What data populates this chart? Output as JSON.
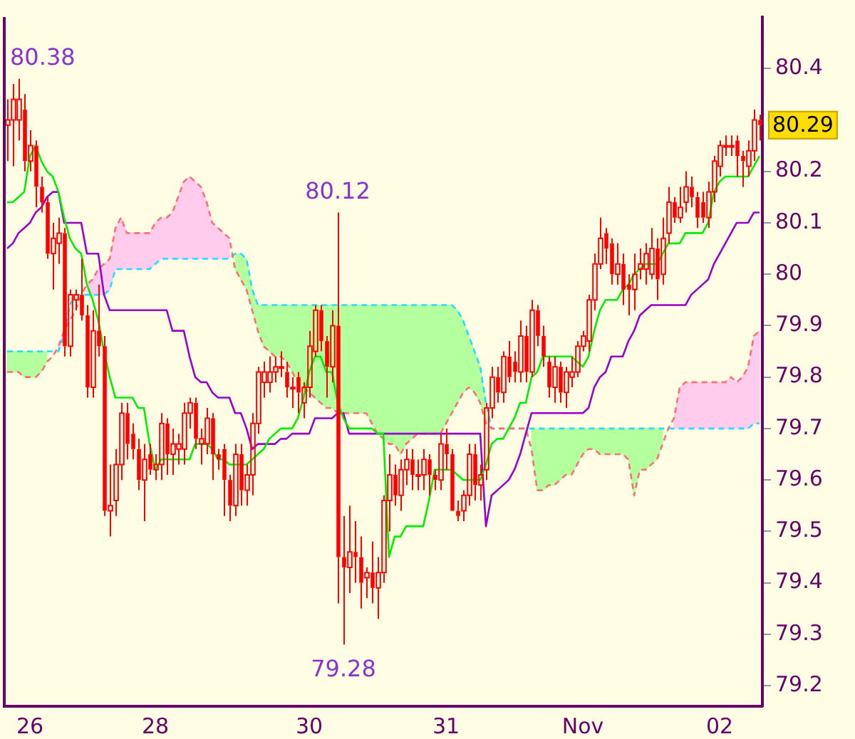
{
  "chart_data": {
    "type": "candlestick",
    "color": "#ff0000",
    "marker": "none",
    "categories": [
      null,
      null,
      null,
      null,
      "26",
      null,
      null,
      null,
      null,
      null,
      null,
      null,
      null,
      null,
      null,
      null,
      null,
      null,
      null,
      null,
      null,
      null,
      null,
      null,
      null,
      null,
      "28",
      null,
      null,
      null,
      null,
      null,
      null,
      null,
      null,
      null,
      null,
      null,
      null,
      null,
      null,
      null,
      null,
      null,
      null,
      null,
      null,
      null,
      null,
      null,
      null,
      null,
      null,
      "30",
      null,
      null,
      null,
      null,
      null,
      null,
      null,
      null,
      null,
      null,
      null,
      null,
      null,
      null,
      null,
      null,
      null,
      null,
      null,
      null,
      null,
      null,
      null,
      "31",
      null,
      null,
      null,
      null,
      null,
      null,
      null,
      null,
      null,
      null,
      null,
      null,
      null,
      null,
      null,
      null,
      null,
      null,
      null,
      null,
      null,
      null,
      null,
      "Nov",
      null,
      null,
      null,
      null,
      null,
      null,
      null,
      null,
      null,
      null,
      null,
      null,
      null,
      null,
      null,
      null,
      null,
      null,
      null,
      null,
      null,
      null,
      null,
      "02",
      null,
      null,
      null,
      null,
      null,
      null,
      null
    ],
    "ohlc": [
      [
        80.29,
        80.34,
        80.22,
        80.3
      ],
      [
        80.3,
        80.37,
        80.21,
        80.34
      ],
      [
        80.3,
        80.38,
        80.26,
        80.34
      ],
      [
        80.32,
        80.35,
        80.2,
        80.22
      ],
      [
        80.22,
        80.28,
        80.2,
        80.25
      ],
      [
        80.25,
        80.26,
        80.13,
        80.17
      ],
      [
        80.17,
        80.19,
        80.12,
        80.14
      ],
      [
        80.14,
        80.15,
        80.03,
        80.04
      ],
      [
        80.04,
        80.1,
        79.97,
        80.07
      ],
      [
        80.06,
        80.11,
        80.02,
        80.08
      ],
      [
        80.08,
        80.09,
        79.84,
        79.86
      ],
      [
        79.86,
        79.97,
        79.84,
        79.96
      ],
      [
        79.95,
        79.97,
        79.93,
        79.96
      ],
      [
        79.96,
        80.03,
        79.91,
        79.92
      ],
      [
        79.92,
        79.94,
        79.76,
        79.78
      ],
      [
        79.78,
        79.93,
        79.76,
        79.89
      ],
      [
        79.89,
        79.98,
        79.84,
        79.86
      ],
      [
        79.86,
        79.88,
        79.53,
        79.54
      ],
      [
        79.54,
        79.63,
        79.49,
        79.55
      ],
      [
        79.56,
        79.66,
        79.53,
        79.63
      ],
      [
        79.63,
        79.75,
        79.6,
        79.73
      ],
      [
        79.73,
        79.75,
        79.64,
        79.67
      ],
      [
        79.69,
        79.71,
        79.64,
        79.66
      ],
      [
        79.66,
        79.68,
        79.58,
        79.6
      ],
      [
        79.6,
        79.67,
        79.52,
        79.64
      ],
      [
        79.65,
        79.67,
        79.61,
        79.62
      ],
      [
        79.62,
        79.65,
        79.6,
        79.63
      ],
      [
        79.63,
        79.73,
        79.6,
        79.71
      ],
      [
        79.71,
        79.72,
        79.61,
        79.65
      ],
      [
        79.65,
        79.7,
        79.61,
        79.67
      ],
      [
        79.66,
        79.69,
        79.63,
        79.67
      ],
      [
        79.66,
        79.75,
        79.63,
        79.73
      ],
      [
        79.73,
        79.76,
        79.7,
        79.75
      ],
      [
        79.75,
        79.76,
        79.66,
        79.68
      ],
      [
        79.67,
        79.7,
        79.63,
        79.68
      ],
      [
        79.67,
        79.74,
        79.65,
        79.72
      ],
      [
        79.72,
        79.73,
        79.6,
        79.65
      ],
      [
        79.65,
        79.66,
        79.62,
        79.64
      ],
      [
        79.66,
        79.67,
        79.53,
        79.6
      ],
      [
        79.6,
        79.61,
        79.52,
        79.55
      ],
      [
        79.55,
        79.67,
        79.53,
        79.65
      ],
      [
        79.65,
        79.67,
        79.55,
        79.58
      ],
      [
        79.58,
        79.63,
        79.55,
        79.61
      ],
      [
        79.61,
        79.73,
        79.57,
        79.71
      ],
      [
        79.71,
        79.82,
        79.69,
        79.81
      ],
      [
        79.79,
        79.83,
        79.76,
        79.81
      ],
      [
        79.79,
        79.84,
        79.77,
        79.81
      ],
      [
        79.81,
        79.84,
        79.79,
        79.82
      ],
      [
        79.82,
        79.85,
        79.8,
        79.82
      ],
      [
        79.81,
        79.83,
        79.76,
        79.78
      ],
      [
        79.78,
        79.8,
        79.74,
        79.78
      ],
      [
        79.8,
        79.81,
        79.73,
        79.77
      ],
      [
        79.75,
        79.79,
        79.72,
        79.78
      ],
      [
        79.78,
        79.89,
        79.76,
        79.86
      ],
      [
        79.85,
        79.94,
        79.84,
        79.93
      ],
      [
        79.93,
        79.94,
        79.85,
        79.87
      ],
      [
        79.87,
        79.88,
        79.76,
        79.82
      ],
      [
        79.82,
        79.93,
        79.79,
        79.9
      ],
      [
        79.9,
        80.12,
        79.36,
        79.45
      ],
      [
        79.45,
        79.53,
        79.28,
        79.43
      ],
      [
        79.43,
        79.55,
        79.38,
        79.46
      ],
      [
        79.46,
        79.52,
        79.4,
        79.45
      ],
      [
        79.45,
        79.49,
        79.35,
        79.4
      ],
      [
        79.41,
        79.43,
        79.37,
        79.42
      ],
      [
        79.42,
        79.48,
        79.36,
        79.39
      ],
      [
        79.39,
        79.45,
        79.33,
        79.42
      ],
      [
        79.42,
        79.57,
        79.4,
        79.56
      ],
      [
        79.56,
        79.65,
        79.5,
        79.61
      ],
      [
        79.61,
        79.63,
        79.55,
        79.57
      ],
      [
        79.57,
        79.64,
        79.54,
        79.62
      ],
      [
        79.62,
        79.66,
        79.59,
        79.64
      ],
      [
        79.64,
        79.66,
        79.58,
        79.61
      ],
      [
        79.61,
        79.64,
        79.58,
        79.61
      ],
      [
        79.61,
        79.66,
        79.58,
        79.64
      ],
      [
        79.64,
        79.65,
        79.57,
        79.61
      ],
      [
        79.61,
        79.62,
        79.58,
        79.6
      ],
      [
        79.6,
        79.69,
        79.58,
        79.67
      ],
      [
        79.67,
        79.7,
        79.62,
        79.65
      ],
      [
        79.65,
        79.66,
        79.54,
        79.54
      ],
      [
        79.54,
        79.56,
        79.52,
        79.53
      ],
      [
        79.54,
        79.58,
        79.52,
        79.57
      ],
      [
        79.57,
        79.67,
        79.55,
        79.65
      ],
      [
        79.65,
        79.67,
        79.56,
        79.59
      ],
      [
        79.59,
        79.63,
        79.56,
        79.61
      ],
      [
        79.62,
        79.75,
        79.6,
        79.74
      ],
      [
        79.74,
        79.82,
        79.72,
        79.8
      ],
      [
        79.8,
        79.82,
        79.75,
        79.77
      ],
      [
        79.77,
        79.85,
        79.75,
        79.84
      ],
      [
        79.84,
        79.87,
        79.79,
        79.8
      ],
      [
        79.83,
        79.85,
        79.79,
        79.81
      ],
      [
        79.81,
        79.91,
        79.79,
        79.88
      ],
      [
        79.88,
        79.9,
        79.79,
        79.81
      ],
      [
        79.81,
        79.95,
        79.8,
        79.93
      ],
      [
        79.93,
        79.94,
        79.86,
        79.88
      ],
      [
        79.88,
        79.9,
        79.82,
        79.84
      ],
      [
        79.83,
        79.84,
        79.76,
        79.78
      ],
      [
        79.78,
        79.84,
        79.75,
        79.82
      ],
      [
        79.82,
        79.83,
        79.75,
        79.77
      ],
      [
        79.77,
        79.82,
        79.74,
        79.81
      ],
      [
        79.8,
        79.84,
        79.78,
        79.81
      ],
      [
        79.81,
        79.87,
        79.8,
        79.86
      ],
      [
        79.86,
        79.89,
        79.85,
        79.88
      ],
      [
        79.87,
        79.96,
        79.85,
        79.95
      ],
      [
        79.95,
        80.04,
        79.93,
        80.02
      ],
      [
        80.02,
        80.11,
        80.01,
        80.07
      ],
      [
        80.08,
        80.09,
        80.02,
        80.05
      ],
      [
        80.06,
        80.07,
        79.98,
        80.0
      ],
      [
        80.0,
        80.06,
        79.98,
        80.02
      ],
      [
        80.02,
        80.04,
        79.94,
        79.97
      ],
      [
        79.98,
        80.0,
        79.92,
        79.97
      ],
      [
        79.97,
        80.04,
        79.93,
        80.0
      ],
      [
        80.01,
        80.05,
        79.99,
        80.02
      ],
      [
        80.01,
        80.06,
        79.98,
        80.04
      ],
      [
        80.0,
        80.09,
        79.99,
        80.05
      ],
      [
        80.05,
        80.07,
        79.95,
        79.99
      ],
      [
        80.0,
        80.11,
        79.98,
        80.07
      ],
      [
        80.08,
        80.17,
        80.06,
        80.14
      ],
      [
        80.14,
        80.15,
        80.1,
        80.11
      ],
      [
        80.11,
        80.17,
        80.1,
        80.13
      ],
      [
        80.14,
        80.2,
        80.12,
        80.17
      ],
      [
        80.17,
        80.19,
        80.13,
        80.15
      ],
      [
        80.15,
        80.16,
        80.09,
        80.11
      ],
      [
        80.14,
        80.16,
        80.1,
        80.11
      ],
      [
        80.11,
        80.18,
        80.09,
        80.16
      ],
      [
        80.16,
        80.23,
        80.14,
        80.22
      ],
      [
        80.21,
        80.26,
        80.19,
        80.25
      ],
      [
        80.25,
        80.27,
        80.23,
        80.25
      ],
      [
        80.25,
        80.27,
        80.23,
        80.25
      ],
      [
        80.26,
        80.27,
        80.19,
        80.23
      ],
      [
        80.23,
        80.24,
        80.17,
        80.22
      ],
      [
        80.21,
        80.26,
        80.19,
        80.24
      ],
      [
        80.24,
        80.32,
        80.22,
        80.3
      ],
      [
        80.3,
        80.31,
        80.26,
        80.29
      ]
    ],
    "series": [
      {
        "type": "line",
        "color": "#00ee00",
        "values": [
          80.14,
          80.14,
          80.15,
          80.16,
          80.23,
          80.25,
          80.22,
          80.2,
          80.19,
          80.16,
          80.11,
          80.07,
          80.05,
          80.04,
          79.98,
          79.95,
          79.91,
          79.85,
          79.8,
          79.76,
          79.76,
          79.76,
          79.76,
          79.74,
          79.74,
          79.67,
          79.62,
          79.64,
          79.64,
          79.64,
          79.64,
          79.64,
          79.64,
          79.67,
          79.67,
          79.67,
          79.66,
          79.64,
          79.64,
          79.63,
          79.63,
          79.63,
          79.63,
          79.64,
          79.65,
          79.66,
          79.68,
          79.69,
          79.7,
          79.7,
          79.7,
          79.72,
          79.76,
          79.81,
          79.84,
          79.84,
          79.81,
          79.81,
          79.75,
          79.72,
          79.7,
          79.7,
          79.7,
          79.7,
          79.7,
          79.69,
          79.69,
          79.45,
          79.49,
          79.49,
          79.51,
          79.51,
          79.51,
          79.51,
          79.56,
          79.62,
          79.62,
          79.62,
          79.62,
          79.61,
          79.6,
          79.6,
          79.6,
          79.6,
          79.63,
          79.67,
          79.68,
          79.68,
          79.7,
          79.72,
          79.75,
          79.75,
          79.8,
          79.81,
          79.84,
          79.84,
          79.84,
          79.84,
          79.84,
          79.84,
          79.83,
          79.82,
          79.84,
          79.89,
          79.93,
          79.95,
          79.95,
          79.95,
          79.97,
          79.98,
          80.0,
          80.01,
          80.02,
          80.02,
          80.02,
          80.04,
          80.06,
          80.06,
          80.06,
          80.08,
          80.08,
          80.08,
          80.08,
          80.1,
          80.16,
          80.18,
          80.19,
          80.19,
          80.19,
          80.19,
          80.19,
          80.21,
          80.23
        ]
      },
      {
        "type": "line",
        "color": "#9900cc",
        "values": [
          80.05,
          80.06,
          80.08,
          80.09,
          80.1,
          80.12,
          80.13,
          80.15,
          80.16,
          80.16,
          80.1,
          80.1,
          80.1,
          80.1,
          80.04,
          80.04,
          80.04,
          79.96,
          79.93,
          79.93,
          79.93,
          79.93,
          79.93,
          79.93,
          79.93,
          79.93,
          79.93,
          79.93,
          79.93,
          79.89,
          79.89,
          79.89,
          79.84,
          79.8,
          79.79,
          79.79,
          79.77,
          79.76,
          79.76,
          79.76,
          79.73,
          79.73,
          79.7,
          79.66,
          79.67,
          79.67,
          79.67,
          79.67,
          79.68,
          79.68,
          79.69,
          79.69,
          79.69,
          79.69,
          79.72,
          79.72,
          79.72,
          79.72,
          79.73,
          79.73,
          79.69,
          79.69,
          79.69,
          79.69,
          79.69,
          79.69,
          79.69,
          79.69,
          79.69,
          79.69,
          79.69,
          79.69,
          79.69,
          79.69,
          79.69,
          79.69,
          79.69,
          79.69,
          79.69,
          79.69,
          79.69,
          79.69,
          79.69,
          79.69,
          79.51,
          79.57,
          79.58,
          79.59,
          79.6,
          79.62,
          79.65,
          79.69,
          79.73,
          79.73,
          79.73,
          79.73,
          79.73,
          79.73,
          79.73,
          79.73,
          79.73,
          79.73,
          79.74,
          79.78,
          79.8,
          79.81,
          79.84,
          79.84,
          79.84,
          79.87,
          79.89,
          79.92,
          79.93,
          79.94,
          79.94,
          79.94,
          79.94,
          79.94,
          79.94,
          79.94,
          79.96,
          79.97,
          79.98,
          79.99,
          80.02,
          80.04,
          80.06,
          80.08,
          80.1,
          80.1,
          80.1,
          80.12,
          80.12
        ]
      },
      {
        "type": "line",
        "color": "#ff6f6f",
        "line_style": "dashed",
        "lower": [
          null,
          null,
          null,
          null,
          null,
          null,
          null,
          null,
          null,
          79.85,
          79.88,
          null,
          null,
          null,
          79.96,
          79.96,
          79.96,
          79.96,
          79.97,
          80.01,
          80.01,
          80.01,
          80.01,
          80.01,
          80.01,
          80.01,
          80.02,
          80.03,
          80.03,
          80.03,
          80.03,
          80.03,
          80.03,
          80.03,
          80.03,
          80.03,
          80.03,
          80.03,
          80.03,
          80.03,
          null,
          null,
          null,
          null,
          null,
          null,
          null,
          null,
          null,
          null,
          null,
          null,
          null,
          null,
          null,
          null,
          null,
          null,
          null,
          null,
          null,
          null,
          null,
          null,
          null,
          null,
          null,
          null,
          null,
          null,
          null,
          null,
          null,
          null,
          null,
          null,
          null,
          null,
          null,
          null,
          null,
          null,
          null,
          null,
          null,
          null,
          null,
          null,
          null,
          null,
          null,
          null,
          null,
          null,
          null,
          null,
          null,
          null,
          null,
          null,
          null,
          null,
          null,
          null,
          null,
          null,
          null,
          null,
          null,
          null,
          null,
          null,
          null,
          null,
          null,
          null,
          null,
          79.7,
          79.7,
          79.7,
          79.7,
          79.7,
          79.7,
          79.7,
          79.7,
          79.7,
          79.7,
          79.7,
          79.7,
          79.7,
          79.7,
          79.71,
          79.71
        ],
        "upper": [
          null,
          null,
          null,
          null,
          null,
          null,
          null,
          null,
          null,
          79.86,
          79.89,
          null,
          null,
          null,
          79.98,
          79.99,
          80.01,
          80.02,
          80.03,
          80.09,
          80.11,
          80.08,
          80.08,
          80.08,
          80.08,
          80.08,
          80.1,
          80.11,
          80.11,
          80.12,
          80.15,
          80.18,
          80.19,
          80.18,
          80.17,
          80.14,
          80.1,
          80.09,
          80.08,
          80.07,
          null,
          null,
          null,
          null,
          null,
          null,
          null,
          null,
          null,
          null,
          null,
          null,
          null,
          null,
          null,
          null,
          null,
          null,
          null,
          null,
          null,
          null,
          null,
          null,
          null,
          null,
          null,
          null,
          null,
          null,
          null,
          null,
          null,
          null,
          null,
          null,
          null,
          null,
          null,
          null,
          null,
          null,
          null,
          null,
          null,
          null,
          null,
          null,
          null,
          null,
          null,
          null,
          null,
          null,
          null,
          null,
          null,
          null,
          null,
          null,
          null,
          null,
          null,
          null,
          null,
          null,
          null,
          null,
          null,
          null,
          null,
          null,
          null,
          null,
          null,
          null,
          null,
          79.72,
          79.78,
          79.79,
          79.79,
          79.79,
          79.79,
          79.79,
          79.79,
          79.79,
          79.79,
          79.8,
          79.79,
          79.8,
          79.82,
          79.88,
          79.89
        ],
        "values": [
          79.81,
          79.81,
          79.81,
          79.8,
          79.8,
          79.8,
          79.81,
          79.83,
          79.84,
          79.86,
          79.89,
          79.91,
          79.93,
          79.96,
          79.98,
          79.99,
          80.01,
          80.02,
          80.03,
          80.09,
          80.11,
          80.08,
          80.08,
          80.08,
          80.08,
          80.08,
          80.1,
          80.11,
          80.11,
          80.12,
          80.15,
          80.18,
          80.19,
          80.18,
          80.17,
          80.14,
          80.1,
          80.09,
          80.08,
          80.07,
          80.01,
          79.99,
          79.97,
          79.93,
          79.89,
          79.86,
          79.85,
          79.84,
          79.84,
          79.83,
          79.81,
          79.79,
          79.78,
          79.77,
          79.76,
          79.75,
          79.74,
          79.74,
          79.73,
          79.73,
          79.73,
          79.73,
          79.73,
          79.73,
          79.71,
          79.69,
          79.68,
          79.67,
          79.67,
          79.65,
          79.67,
          79.68,
          79.69,
          79.69,
          79.69,
          79.69,
          79.69,
          79.71,
          79.73,
          79.75,
          79.77,
          79.78,
          79.77,
          79.75,
          79.71,
          79.7,
          79.7,
          79.7,
          79.7,
          79.7,
          79.7,
          79.7,
          79.66,
          79.58,
          79.58,
          79.59,
          79.59,
          79.6,
          79.61,
          79.61,
          79.63,
          79.65,
          79.66,
          79.66,
          79.65,
          79.65,
          79.65,
          79.65,
          79.65,
          79.64,
          79.57,
          79.62,
          79.62,
          79.63,
          79.64,
          79.67,
          79.7,
          79.72,
          79.78,
          79.79,
          79.79,
          79.79,
          79.79,
          79.79,
          79.79,
          79.79,
          79.79,
          79.8,
          79.79,
          79.8,
          79.82,
          79.88,
          79.89
        ]
      },
      {
        "type": "line",
        "color": "#22ddff",
        "line_style": "dashed",
        "lower": [
          79.81,
          79.81,
          79.81,
          79.8,
          79.8,
          79.8,
          79.81,
          79.83,
          null,
          null,
          null,
          null,
          null,
          null,
          null,
          null,
          null,
          null,
          null,
          null,
          null,
          null,
          null,
          null,
          null,
          null,
          null,
          null,
          null,
          null,
          null,
          null,
          null,
          null,
          null,
          null,
          null,
          null,
          null,
          null,
          80.01,
          79.99,
          79.97,
          79.93,
          79.89,
          79.86,
          79.85,
          79.84,
          79.84,
          79.83,
          79.81,
          79.79,
          79.78,
          79.77,
          79.76,
          79.75,
          79.74,
          79.74,
          79.73,
          79.73,
          79.73,
          79.73,
          79.73,
          79.73,
          79.71,
          79.69,
          79.68,
          79.67,
          79.67,
          79.65,
          79.67,
          79.68,
          79.69,
          79.69,
          79.69,
          79.69,
          79.69,
          79.71,
          79.73,
          79.75,
          79.77,
          79.78,
          79.77,
          79.75,
          79.71,
          null,
          null,
          null,
          null,
          null,
          null,
          null,
          79.66,
          79.58,
          79.58,
          79.59,
          79.59,
          79.6,
          79.61,
          79.61,
          79.63,
          79.65,
          79.66,
          79.66,
          79.65,
          79.65,
          79.65,
          79.65,
          79.65,
          79.64,
          79.57,
          79.62,
          79.62,
          79.63,
          79.64,
          79.67,
          null,
          null,
          null,
          null,
          null,
          null,
          null,
          null,
          null,
          null,
          null,
          null,
          null,
          null,
          null,
          null,
          null
        ],
        "upper": [
          79.85,
          79.85,
          79.85,
          79.85,
          79.85,
          79.85,
          79.85,
          79.85,
          null,
          null,
          null,
          null,
          null,
          null,
          null,
          null,
          null,
          null,
          null,
          null,
          null,
          null,
          null,
          null,
          null,
          null,
          null,
          null,
          null,
          null,
          null,
          null,
          null,
          null,
          null,
          null,
          null,
          null,
          null,
          null,
          80.04,
          80.04,
          80.03,
          79.97,
          79.94,
          79.94,
          79.94,
          79.94,
          79.94,
          79.94,
          79.94,
          79.94,
          79.94,
          79.94,
          79.94,
          79.94,
          79.94,
          79.94,
          79.94,
          79.94,
          79.94,
          79.94,
          79.94,
          79.94,
          79.94,
          79.94,
          79.94,
          79.94,
          79.94,
          79.94,
          79.94,
          79.94,
          79.94,
          79.94,
          79.94,
          79.94,
          79.94,
          79.94,
          79.94,
          79.93,
          79.91,
          79.88,
          79.85,
          79.82,
          79.75,
          null,
          null,
          null,
          null,
          null,
          null,
          null,
          79.7,
          79.7,
          79.7,
          79.7,
          79.7,
          79.7,
          79.7,
          79.7,
          79.7,
          79.7,
          79.7,
          79.7,
          79.7,
          79.7,
          79.7,
          79.7,
          79.7,
          79.7,
          79.7,
          79.7,
          79.7,
          79.7,
          79.7,
          79.7,
          null,
          null,
          null,
          null,
          null,
          null,
          null,
          null,
          null,
          null,
          null,
          null,
          null,
          null,
          null,
          null,
          null
        ],
        "values": [
          79.85,
          79.85,
          79.85,
          79.85,
          79.85,
          79.85,
          79.85,
          79.85,
          79.85,
          79.85,
          79.88,
          79.94,
          79.96,
          79.96,
          79.96,
          79.96,
          79.96,
          79.96,
          79.97,
          80.01,
          80.01,
          80.01,
          80.01,
          80.01,
          80.01,
          80.01,
          80.02,
          80.03,
          80.03,
          80.03,
          80.03,
          80.03,
          80.03,
          80.03,
          80.03,
          80.03,
          80.03,
          80.03,
          80.03,
          80.03,
          80.04,
          80.04,
          80.03,
          79.97,
          79.94,
          79.94,
          79.94,
          79.94,
          79.94,
          79.94,
          79.94,
          79.94,
          79.94,
          79.94,
          79.94,
          79.94,
          79.94,
          79.94,
          79.94,
          79.94,
          79.94,
          79.94,
          79.94,
          79.94,
          79.94,
          79.94,
          79.94,
          79.94,
          79.94,
          79.94,
          79.94,
          79.94,
          79.94,
          79.94,
          79.94,
          79.94,
          79.94,
          79.94,
          79.94,
          79.93,
          79.91,
          79.88,
          79.85,
          79.82,
          79.75,
          79.7,
          79.7,
          79.7,
          79.7,
          79.7,
          79.7,
          79.7,
          79.7,
          79.7,
          79.7,
          79.7,
          79.7,
          79.7,
          79.7,
          79.7,
          79.7,
          79.7,
          79.7,
          79.7,
          79.7,
          79.7,
          79.7,
          79.7,
          79.7,
          79.7,
          79.7,
          79.7,
          79.7,
          79.7,
          79.7,
          79.7,
          79.7,
          79.7,
          79.7,
          79.7,
          79.7,
          79.7,
          79.7,
          79.7,
          79.7,
          79.7,
          79.7,
          79.7,
          79.7,
          79.7,
          79.7,
          79.71,
          79.71
        ]
      }
    ],
    "ylim": [
      79.16,
      80.5
    ],
    "yticks": [
      79.2,
      79.3,
      79.4,
      79.5,
      79.6,
      79.7,
      79.8,
      79.9,
      80,
      80.1,
      80.2,
      80.4
    ],
    "legend": false,
    "annotations": [
      "80.38",
      {
        "text": "80.12",
        "y": 80.12
      },
      {
        "text": "79.28",
        "y": 79.28
      },
      "80.29"
    ]
  }
}
